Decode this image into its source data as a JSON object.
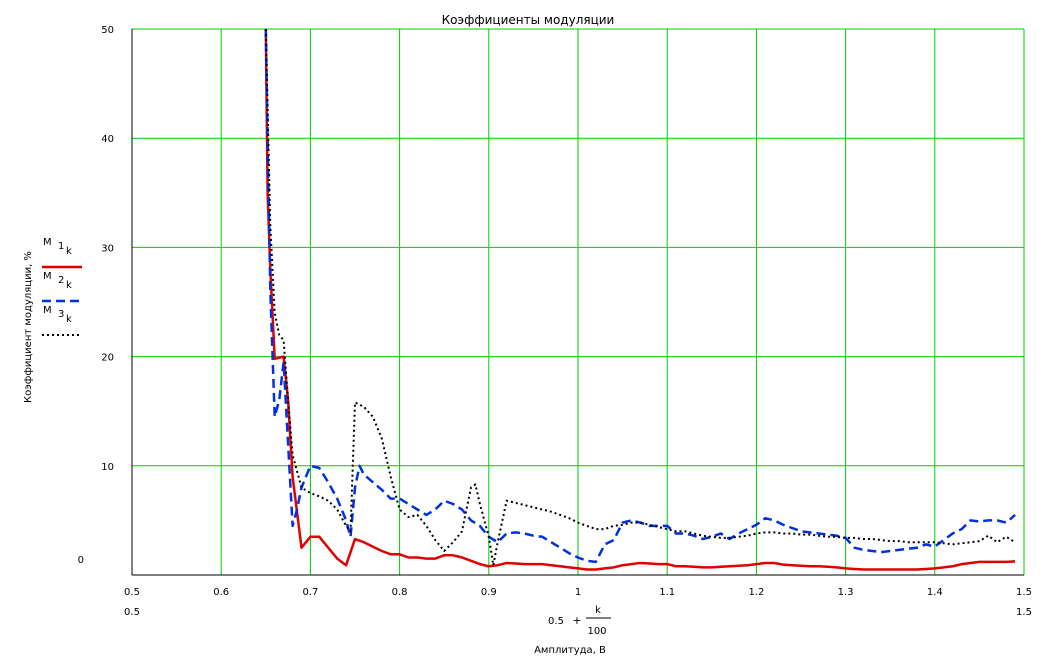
{
  "chart_data": {
    "type": "line",
    "title": "Коэффициенты модуляции",
    "ylabel": "Коэффициент модуляции, %",
    "xlabel": "Амплитуда, В",
    "x_expr": {
      "base": "0.5",
      "plus": "+",
      "num": "k",
      "den": "100"
    },
    "xlim": [
      0.5,
      1.5
    ],
    "ylim": [
      0,
      50
    ],
    "x_ticks": [
      "0.5",
      "0.6",
      "0.7",
      "0.8",
      "0.9",
      "1",
      "1.1",
      "1.2",
      "1.3",
      "1.4",
      "1.5"
    ],
    "x_tick_values": [
      0.5,
      0.6,
      0.7,
      0.8,
      0.9,
      1.0,
      1.1,
      1.2,
      1.3,
      1.4,
      1.5
    ],
    "x_range_labels": [
      "0.5",
      "1.5"
    ],
    "y_ticks": [
      "0",
      "10",
      "20",
      "30",
      "40",
      "50"
    ],
    "y_tick_values": [
      0,
      10,
      20,
      30,
      40,
      50
    ],
    "grid": true,
    "legend_position": "left",
    "series": [
      {
        "name": "M",
        "sub1": "1",
        "sub2": "k",
        "color": "#e00000",
        "dash": "solid",
        "points": [
          [
            0.65,
            50
          ],
          [
            0.652,
            35
          ],
          [
            0.655,
            28
          ],
          [
            0.66,
            19.8
          ],
          [
            0.67,
            20
          ],
          [
            0.675,
            16
          ],
          [
            0.68,
            9
          ],
          [
            0.69,
            2.5
          ],
          [
            0.7,
            3.5
          ],
          [
            0.71,
            3.5
          ],
          [
            0.72,
            2.5
          ],
          [
            0.73,
            1.5
          ],
          [
            0.74,
            0.9
          ],
          [
            0.75,
            3.3
          ],
          [
            0.76,
            3.0
          ],
          [
            0.77,
            2.6
          ],
          [
            0.78,
            2.2
          ],
          [
            0.79,
            1.9
          ],
          [
            0.8,
            1.9
          ],
          [
            0.81,
            1.6
          ],
          [
            0.82,
            1.6
          ],
          [
            0.83,
            1.5
          ],
          [
            0.84,
            1.5
          ],
          [
            0.85,
            1.8
          ],
          [
            0.86,
            1.8
          ],
          [
            0.87,
            1.6
          ],
          [
            0.88,
            1.3
          ],
          [
            0.89,
            1.0
          ],
          [
            0.9,
            0.8
          ],
          [
            0.91,
            0.9
          ],
          [
            0.92,
            1.1
          ],
          [
            0.93,
            1.05
          ],
          [
            0.94,
            1.0
          ],
          [
            0.95,
            1.0
          ],
          [
            0.96,
            1.0
          ],
          [
            0.97,
            0.9
          ],
          [
            0.98,
            0.8
          ],
          [
            0.99,
            0.7
          ],
          [
            1.0,
            0.6
          ],
          [
            1.01,
            0.5
          ],
          [
            1.02,
            0.5
          ],
          [
            1.03,
            0.6
          ],
          [
            1.04,
            0.7
          ],
          [
            1.05,
            0.9
          ],
          [
            1.06,
            1.0
          ],
          [
            1.07,
            1.1
          ],
          [
            1.08,
            1.05
          ],
          [
            1.09,
            1.0
          ],
          [
            1.1,
            1.0
          ],
          [
            1.11,
            0.8
          ],
          [
            1.12,
            0.8
          ],
          [
            1.13,
            0.75
          ],
          [
            1.14,
            0.7
          ],
          [
            1.15,
            0.7
          ],
          [
            1.16,
            0.75
          ],
          [
            1.17,
            0.8
          ],
          [
            1.18,
            0.85
          ],
          [
            1.19,
            0.9
          ],
          [
            1.2,
            1.0
          ],
          [
            1.21,
            1.1
          ],
          [
            1.22,
            1.1
          ],
          [
            1.23,
            0.95
          ],
          [
            1.24,
            0.9
          ],
          [
            1.25,
            0.85
          ],
          [
            1.26,
            0.8
          ],
          [
            1.27,
            0.8
          ],
          [
            1.28,
            0.75
          ],
          [
            1.29,
            0.7
          ],
          [
            1.3,
            0.6
          ],
          [
            1.31,
            0.55
          ],
          [
            1.32,
            0.5
          ],
          [
            1.33,
            0.5
          ],
          [
            1.34,
            0.5
          ],
          [
            1.35,
            0.5
          ],
          [
            1.36,
            0.5
          ],
          [
            1.37,
            0.5
          ],
          [
            1.38,
            0.5
          ],
          [
            1.39,
            0.55
          ],
          [
            1.4,
            0.6
          ],
          [
            1.41,
            0.7
          ],
          [
            1.42,
            0.8
          ],
          [
            1.43,
            1.0
          ],
          [
            1.44,
            1.1
          ],
          [
            1.45,
            1.2
          ],
          [
            1.46,
            1.2
          ],
          [
            1.47,
            1.2
          ],
          [
            1.48,
            1.2
          ],
          [
            1.49,
            1.25
          ]
        ]
      },
      {
        "name": "M",
        "sub1": "2",
        "sub2": "k",
        "color": "#0030e0",
        "dash": "dashed",
        "points": [
          [
            0.65,
            50
          ],
          [
            0.652,
            40
          ],
          [
            0.655,
            26
          ],
          [
            0.66,
            14.5
          ],
          [
            0.665,
            16
          ],
          [
            0.67,
            19.5
          ],
          [
            0.675,
            12
          ],
          [
            0.68,
            4.5
          ],
          [
            0.685,
            6
          ],
          [
            0.69,
            8
          ],
          [
            0.7,
            10
          ],
          [
            0.71,
            9.8
          ],
          [
            0.72,
            8.5
          ],
          [
            0.73,
            7
          ],
          [
            0.74,
            5
          ],
          [
            0.745,
            3.5
          ],
          [
            0.75,
            8
          ],
          [
            0.755,
            10
          ],
          [
            0.76,
            9.2
          ],
          [
            0.77,
            8.5
          ],
          [
            0.78,
            7.8
          ],
          [
            0.79,
            7
          ],
          [
            0.8,
            7
          ],
          [
            0.81,
            6.5
          ],
          [
            0.82,
            6
          ],
          [
            0.83,
            5.5
          ],
          [
            0.84,
            6
          ],
          [
            0.85,
            6.8
          ],
          [
            0.86,
            6.5
          ],
          [
            0.87,
            6
          ],
          [
            0.88,
            5
          ],
          [
            0.89,
            4.5
          ],
          [
            0.9,
            3.5
          ],
          [
            0.91,
            3
          ],
          [
            0.92,
            3.8
          ],
          [
            0.93,
            3.9
          ],
          [
            0.94,
            3.8
          ],
          [
            0.95,
            3.6
          ],
          [
            0.96,
            3.5
          ],
          [
            0.97,
            3.0
          ],
          [
            0.98,
            2.5
          ],
          [
            0.99,
            2
          ],
          [
            1.0,
            1.6
          ],
          [
            1.01,
            1.3
          ],
          [
            1.02,
            1.2
          ],
          [
            1.03,
            2.8
          ],
          [
            1.04,
            3.2
          ],
          [
            1.05,
            4.8
          ],
          [
            1.06,
            5
          ],
          [
            1.07,
            4.8
          ],
          [
            1.08,
            4.5
          ],
          [
            1.09,
            4.5
          ],
          [
            1.1,
            4.5
          ],
          [
            1.11,
            3.8
          ],
          [
            1.12,
            3.8
          ],
          [
            1.13,
            3.6
          ],
          [
            1.14,
            3.3
          ],
          [
            1.15,
            3.5
          ],
          [
            1.16,
            3.8
          ],
          [
            1.17,
            3.3
          ],
          [
            1.18,
            3.8
          ],
          [
            1.19,
            4.2
          ],
          [
            1.2,
            4.6
          ],
          [
            1.21,
            5.2
          ],
          [
            1.22,
            5
          ],
          [
            1.23,
            4.6
          ],
          [
            1.24,
            4.3
          ],
          [
            1.25,
            4.0
          ],
          [
            1.26,
            3.9
          ],
          [
            1.27,
            3.8
          ],
          [
            1.28,
            3.7
          ],
          [
            1.29,
            3.6
          ],
          [
            1.3,
            3.4
          ],
          [
            1.31,
            2.5
          ],
          [
            1.32,
            2.3
          ],
          [
            1.33,
            2.2
          ],
          [
            1.34,
            2.1
          ],
          [
            1.35,
            2.2
          ],
          [
            1.36,
            2.3
          ],
          [
            1.37,
            2.4
          ],
          [
            1.38,
            2.5
          ],
          [
            1.39,
            2.8
          ],
          [
            1.4,
            2.6
          ],
          [
            1.41,
            3.2
          ],
          [
            1.42,
            3.8
          ],
          [
            1.43,
            4.2
          ],
          [
            1.44,
            5
          ],
          [
            1.45,
            4.9
          ],
          [
            1.46,
            5
          ],
          [
            1.47,
            5.0
          ],
          [
            1.48,
            4.8
          ],
          [
            1.49,
            5.5
          ]
        ]
      },
      {
        "name": "M",
        "sub1": "3",
        "sub2": "k",
        "color": "#000000",
        "dash": "dotted",
        "points": [
          [
            0.65,
            50
          ],
          [
            0.655,
            32
          ],
          [
            0.66,
            24
          ],
          [
            0.665,
            22
          ],
          [
            0.67,
            21.5
          ],
          [
            0.675,
            16
          ],
          [
            0.68,
            11
          ],
          [
            0.69,
            8
          ],
          [
            0.7,
            7.5
          ],
          [
            0.71,
            7.2
          ],
          [
            0.72,
            6.8
          ],
          [
            0.73,
            6.0
          ],
          [
            0.74,
            4.5
          ],
          [
            0.745,
            4
          ],
          [
            0.75,
            15.8
          ],
          [
            0.76,
            15.4
          ],
          [
            0.77,
            14.5
          ],
          [
            0.78,
            12.5
          ],
          [
            0.79,
            9
          ],
          [
            0.8,
            6
          ],
          [
            0.81,
            5.3
          ],
          [
            0.82,
            5.5
          ],
          [
            0.83,
            4.5
          ],
          [
            0.84,
            3.2
          ],
          [
            0.85,
            2.2
          ],
          [
            0.86,
            3.0
          ],
          [
            0.87,
            4.0
          ],
          [
            0.88,
            8
          ],
          [
            0.885,
            8.3
          ],
          [
            0.89,
            6.5
          ],
          [
            0.9,
            3.5
          ],
          [
            0.905,
            0.9
          ],
          [
            0.91,
            3
          ],
          [
            0.92,
            6.8
          ],
          [
            0.93,
            6.6
          ],
          [
            0.94,
            6.4
          ],
          [
            0.95,
            6.2
          ],
          [
            0.96,
            6.0
          ],
          [
            0.97,
            5.8
          ],
          [
            0.98,
            5.5
          ],
          [
            0.99,
            5.2
          ],
          [
            1.0,
            4.8
          ],
          [
            1.01,
            4.5
          ],
          [
            1.02,
            4.2
          ],
          [
            1.03,
            4.2
          ],
          [
            1.04,
            4.5
          ],
          [
            1.05,
            4.6
          ],
          [
            1.06,
            4.8
          ],
          [
            1.07,
            4.8
          ],
          [
            1.08,
            4.6
          ],
          [
            1.09,
            4.4
          ],
          [
            1.1,
            4.2
          ],
          [
            1.11,
            4.0
          ],
          [
            1.12,
            4.0
          ],
          [
            1.13,
            3.8
          ],
          [
            1.14,
            3.6
          ],
          [
            1.15,
            3.5
          ],
          [
            1.16,
            3.4
          ],
          [
            1.17,
            3.4
          ],
          [
            1.18,
            3.5
          ],
          [
            1.19,
            3.6
          ],
          [
            1.2,
            3.8
          ],
          [
            1.21,
            3.9
          ],
          [
            1.22,
            3.9
          ],
          [
            1.23,
            3.8
          ],
          [
            1.24,
            3.8
          ],
          [
            1.25,
            3.7
          ],
          [
            1.26,
            3.7
          ],
          [
            1.27,
            3.6
          ],
          [
            1.28,
            3.5
          ],
          [
            1.29,
            3.5
          ],
          [
            1.3,
            3.4
          ],
          [
            1.31,
            3.4
          ],
          [
            1.32,
            3.3
          ],
          [
            1.33,
            3.3
          ],
          [
            1.34,
            3.2
          ],
          [
            1.35,
            3.1
          ],
          [
            1.36,
            3.1
          ],
          [
            1.37,
            3.0
          ],
          [
            1.38,
            3.0
          ],
          [
            1.39,
            3.0
          ],
          [
            1.4,
            3.0
          ],
          [
            1.41,
            2.9
          ],
          [
            1.42,
            2.8
          ],
          [
            1.43,
            2.9
          ],
          [
            1.44,
            3.0
          ],
          [
            1.45,
            3.1
          ],
          [
            1.46,
            3.6
          ],
          [
            1.47,
            3.0
          ],
          [
            1.48,
            3.5
          ],
          [
            1.49,
            3.0
          ]
        ]
      }
    ]
  }
}
